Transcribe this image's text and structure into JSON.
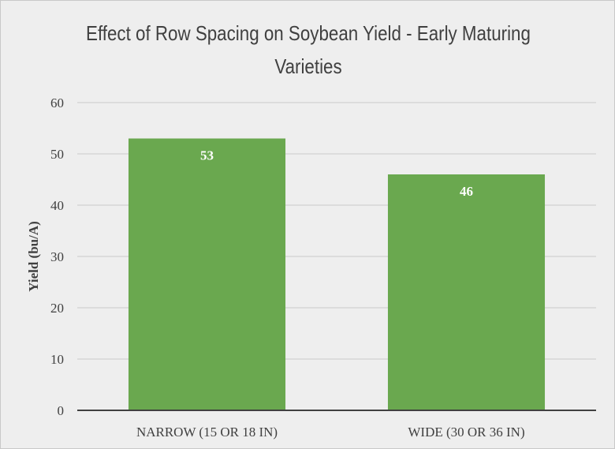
{
  "chart_data": {
    "type": "bar",
    "title": "Effect of Row Spacing on Soybean Yield - Early Maturing Varieties",
    "categories": [
      "NARROW (15 OR 18 IN)",
      "WIDE (30 OR 36 IN)"
    ],
    "values": [
      53,
      46
    ],
    "data_labels": [
      "53",
      "46"
    ],
    "xlabel": "",
    "ylabel": "Yield (bu/A)",
    "ylim": [
      0,
      60
    ],
    "yticks": [
      0,
      10,
      20,
      30,
      40,
      50,
      60
    ],
    "grid": true,
    "legend": "none",
    "bar_color": "#6aa84f",
    "background_color": "#eeeeee",
    "gridline_color": "#c9c9c9",
    "axis_color": "#404040"
  }
}
